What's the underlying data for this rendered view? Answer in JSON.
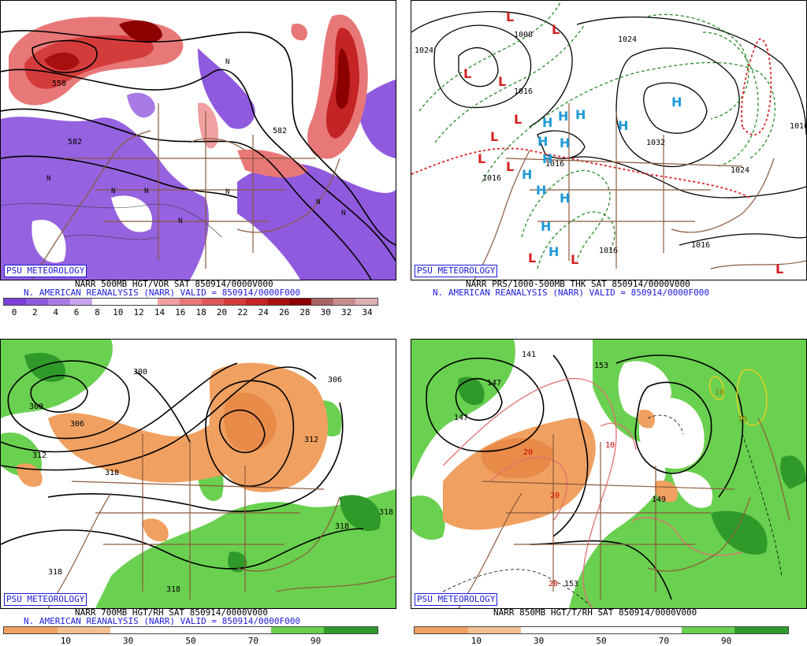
{
  "panels": [
    {
      "id": "p1",
      "badge": "PSU METEOROLOGY",
      "title_line1": "NARR 500MB HGT/VOR SAT 850914/0000V000",
      "title_line2": "N. AMERICAN REANALYSIS (NARR) VALID = 850914/0000F000",
      "colorbar_ticks": [
        "0",
        "2",
        "4",
        "6",
        "8",
        "10",
        "12",
        "14",
        "16",
        "18",
        "20",
        "22",
        "24",
        "26",
        "28",
        "30",
        "32",
        "34"
      ],
      "colorbar_colors": [
        "#7a3fd6",
        "#8f5ade",
        "#a87ae6",
        "#c8a6ee",
        "#ffffff",
        "#ffffff",
        "#ffffff",
        "#f0a0a0",
        "#e87878",
        "#e05858",
        "#d43c3c",
        "#c42424",
        "#a81010",
        "#8c0000",
        "#a86464",
        "#c88c8c",
        "#e0b0b0"
      ],
      "contour_labels": [
        "558",
        "582",
        "582"
      ],
      "markers": [
        "N",
        "N",
        "N",
        "N",
        "N",
        "N",
        "N",
        "N"
      ]
    },
    {
      "id": "p2",
      "badge": "PSU METEOROLOGY",
      "title_line1": "NARR PRS/1000-500MB THK SAT 850914/0000V000",
      "title_line2": "N. AMERICAN REANALYSIS (NARR) VALID = 850914/0000F000",
      "contour_labels": [
        "1024",
        "1008",
        "1024",
        "1016",
        "1016",
        "1032",
        "1024",
        "1016",
        "1016",
        "1016",
        "1016"
      ],
      "low_markers": [
        "L",
        "L",
        "L",
        "L",
        "L",
        "L",
        "L",
        "L",
        "L",
        "L",
        "L"
      ],
      "high_markers": [
        "H",
        "H",
        "H",
        "H",
        "H",
        "H",
        "H",
        "H",
        "H",
        "H",
        "H",
        "H",
        "H"
      ]
    },
    {
      "id": "p3",
      "badge": "PSU METEOROLOGY",
      "title_line1": "NARR 700MB HGT/RH SAT 850914/0000V000",
      "title_line2": "N. AMERICAN REANALYSIS (NARR) VALID = 850914/0000F000",
      "colorbar_ticks": [
        "10",
        "30",
        "50",
        "70",
        "90"
      ],
      "colorbar_colors": [
        "#f0a060",
        "#f5c090",
        "#ffffff",
        "#ffffff",
        "#ffffff",
        "#6ad050",
        "#2f9a2a"
      ],
      "contour_labels": [
        "300",
        "300",
        "306",
        "312",
        "318",
        "306",
        "312",
        "318",
        "318",
        "318",
        "318"
      ]
    },
    {
      "id": "p4",
      "badge": "PSU METEOROLOGY",
      "title_line1": "NARR 850MB HGT/T/RH SAT 850914/0000V000",
      "colorbar_ticks": [
        "10",
        "30",
        "50",
        "70",
        "90"
      ],
      "colorbar_colors": [
        "#f0a060",
        "#f5c090",
        "#ffffff",
        "#ffffff",
        "#ffffff",
        "#6ad050",
        "#2f9a2a"
      ],
      "contour_labels": [
        "141",
        "147",
        "153",
        "147",
        "20",
        "10",
        "20",
        "149",
        "20",
        "153",
        "10",
        "10"
      ]
    }
  ]
}
